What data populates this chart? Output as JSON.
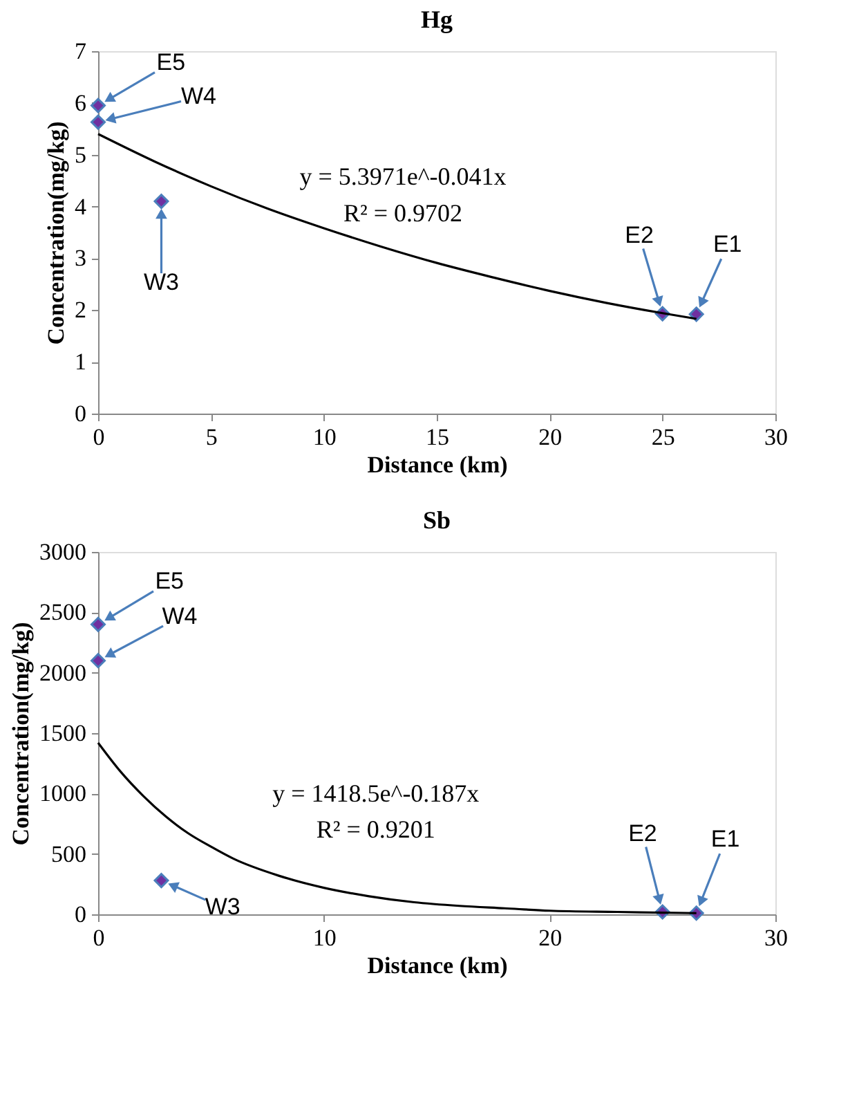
{
  "chart_data": [
    {
      "type": "scatter",
      "title": "Hg",
      "xlabel": "Distance (km)",
      "ylabel": "Concentration(mg/kg)",
      "xlim": [
        0,
        30
      ],
      "xticks": [
        0,
        5,
        10,
        15,
        20,
        25,
        30
      ],
      "ylim": [
        0,
        7
      ],
      "yticks": [
        0,
        1,
        2,
        3,
        4,
        5,
        6,
        7
      ],
      "grid": false,
      "series": [
        {
          "marker": "diamond",
          "color": "#7030a0",
          "x": [
            0,
            0,
            2.8,
            25,
            26.5
          ],
          "values": [
            5.95,
            5.63,
            4.1,
            1.93,
            1.92
          ]
        },
        {
          "type": "line",
          "color": "#000000",
          "x": [
            0,
            2.5,
            5,
            7.5,
            10,
            12.5,
            15,
            17.5,
            20,
            22.5,
            25,
            26.5
          ],
          "values": [
            5.4,
            4.87,
            4.39,
            3.96,
            3.58,
            3.23,
            2.91,
            2.63,
            2.37,
            2.14,
            1.94,
            1.83
          ]
        }
      ],
      "annotations": [
        {
          "text": "E5",
          "x": 0,
          "y": 5.95
        },
        {
          "text": "W4",
          "x": 0,
          "y": 5.63
        },
        {
          "text": "W3",
          "x": 2.8,
          "y": 4.1
        },
        {
          "text": "E2",
          "x": 25,
          "y": 1.93
        },
        {
          "text": "E1",
          "x": 26.5,
          "y": 1.92
        },
        "y = 5.3971e^-0.041x",
        "R² = 0.9702"
      ]
    },
    {
      "type": "scatter",
      "title": "Sb",
      "xlabel": "Distance (km)",
      "ylabel": "Concentration(mg/kg)",
      "xlim": [
        0,
        30
      ],
      "xticks": [
        0,
        10,
        20,
        30
      ],
      "ylim": [
        0,
        3000
      ],
      "yticks": [
        0,
        500,
        1000,
        1500,
        2000,
        2500,
        3000
      ],
      "grid": false,
      "series": [
        {
          "marker": "diamond",
          "color": "#7030a0",
          "x": [
            0,
            0,
            2.8,
            25,
            26.5
          ],
          "values": [
            2400,
            2100,
            280,
            20,
            10
          ]
        },
        {
          "type": "line",
          "color": "#000000",
          "x": [
            0,
            1,
            2,
            3,
            4,
            5,
            6,
            8,
            10,
            12,
            14,
            16,
            18,
            20,
            23,
            26.5
          ],
          "values": [
            1420,
            1180,
            980,
            810,
            670,
            560,
            460,
            320,
            220,
            150,
            100,
            70,
            50,
            30,
            20,
            10
          ]
        }
      ],
      "annotations": [
        {
          "text": "E5",
          "x": 0,
          "y": 2400
        },
        {
          "text": "W4",
          "x": 0,
          "y": 2100
        },
        {
          "text": "W3",
          "x": 2.8,
          "y": 280
        },
        {
          "text": "E2",
          "x": 25,
          "y": 20
        },
        {
          "text": "E1",
          "x": 26.5,
          "y": 10
        },
        "y = 1418.5e^-0.187x",
        "R² = 0.9201"
      ]
    }
  ]
}
